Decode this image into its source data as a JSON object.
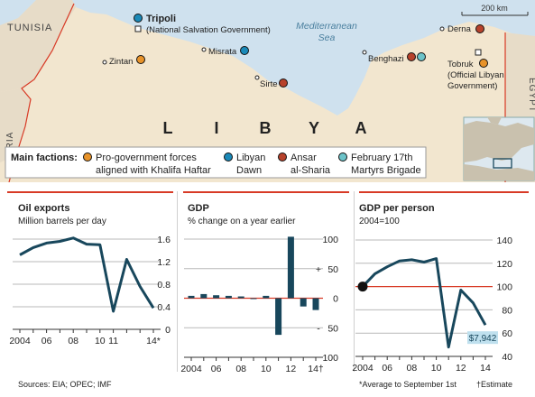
{
  "colors": {
    "sea": "#cfe1ee",
    "land": "#f2e6cf",
    "land_outside": "#e7dcc8",
    "red": "#d83a26",
    "orange": "#e8932a",
    "blue": "#1a89b8",
    "darkred": "#b7422b",
    "teal": "#6cc3c9",
    "line": "#18475c"
  },
  "map": {
    "country_label": [
      "L",
      "I",
      "B",
      "Y",
      "A"
    ],
    "sea_label_1": "Mediterranean",
    "sea_label_2": "Sea",
    "scale_label": "200 km",
    "borders": {
      "tunisia": "TUNISIA",
      "algeria": "ALGERIA",
      "egypt": "EGYPT"
    },
    "cities": {
      "tripoli": "Tripoli",
      "tripoli_note": "(National Salvation Government)",
      "zintan": "Zintan",
      "misrata": "Misrata",
      "sirte": "Sirte",
      "benghazi": "Benghazi",
      "derna": "Derna",
      "tobruk": "Tobruk",
      "tobruk_note_1": "(Official Libyan",
      "tobruk_note_2": "Government)"
    },
    "legend": {
      "title": "Main factions:",
      "items": [
        {
          "line1": "Pro-government forces",
          "line2": "aligned with Khalifa Haftar",
          "color": "orange"
        },
        {
          "line1": "Libyan",
          "line2": "Dawn",
          "color": "blue"
        },
        {
          "line1": "Ansar",
          "line2": "al-Sharia",
          "color": "darkred"
        },
        {
          "line1": "February 17th",
          "line2": "Martyrs Brigade",
          "color": "teal"
        }
      ]
    }
  },
  "panels": {
    "oil": {
      "title": "Oil exports",
      "subtitle": "Million barrels per day"
    },
    "gdp": {
      "title": "GDP",
      "subtitle": "% change on a year earlier"
    },
    "gdppp": {
      "title": "GDP per person",
      "subtitle": "2004=100",
      "annotation": "$7,942"
    }
  },
  "footer": {
    "sources": "Sources: EIA; OPEC; IMF",
    "average_note": "*Average to September 1st",
    "estimate_note": "†Estimate"
  },
  "chart_data": [
    {
      "type": "line",
      "title": "Oil exports",
      "ylabel": "Million barrels per day",
      "x": [
        2004,
        2005,
        2006,
        2007,
        2008,
        2009,
        2010,
        2011,
        2012,
        2013,
        2014
      ],
      "values": [
        1.32,
        1.45,
        1.53,
        1.56,
        1.62,
        1.51,
        1.5,
        0.32,
        1.24,
        0.76,
        0.38
      ],
      "ylim": [
        0,
        1.6
      ],
      "yticks": [
        0,
        0.4,
        0.8,
        1.2,
        1.6
      ],
      "ytick_labels": [
        "0",
        "0.4",
        "0.8",
        "1.2",
        "1.6"
      ],
      "xticks": [
        2004,
        2006,
        2008,
        2010,
        2011,
        2014
      ],
      "xtick_labels": [
        "2004",
        "06",
        "08",
        "10",
        "11",
        "14*"
      ]
    },
    {
      "type": "bar",
      "title": "GDP",
      "ylabel": "% change on a year earlier",
      "x": [
        2004,
        2005,
        2006,
        2007,
        2008,
        2009,
        2010,
        2011,
        2012,
        2013,
        2014
      ],
      "values": [
        4,
        7,
        5,
        4,
        3,
        -1,
        4,
        -62,
        104,
        -14,
        -20
      ],
      "ylim": [
        -100,
        100
      ],
      "yticks": [
        -100,
        -50,
        0,
        50,
        100
      ],
      "ytick_labels": [
        "100",
        "50",
        "0",
        "50",
        "100"
      ],
      "ytick_signs": [
        "",
        "-",
        "",
        "+",
        ""
      ],
      "xticks": [
        2004,
        2006,
        2008,
        2010,
        2012,
        2014
      ],
      "xtick_labels": [
        "2004",
        "06",
        "08",
        "10",
        "12",
        "14†"
      ]
    },
    {
      "type": "line",
      "title": "GDP per person",
      "ylabel": "2004=100",
      "x": [
        2004,
        2005,
        2006,
        2007,
        2008,
        2009,
        2010,
        2011,
        2012,
        2013,
        2014
      ],
      "values": [
        100,
        111,
        117,
        122,
        123,
        121,
        124,
        48,
        97,
        86,
        67
      ],
      "ylim": [
        40,
        140
      ],
      "yticks": [
        40,
        60,
        80,
        100,
        120,
        140
      ],
      "ytick_labels": [
        "40",
        "60",
        "80",
        "100",
        "120",
        "140"
      ],
      "xticks": [
        2004,
        2006,
        2008,
        2010,
        2012,
        2014
      ],
      "xtick_labels": [
        "2004",
        "06",
        "08",
        "10",
        "12",
        "14"
      ]
    }
  ]
}
